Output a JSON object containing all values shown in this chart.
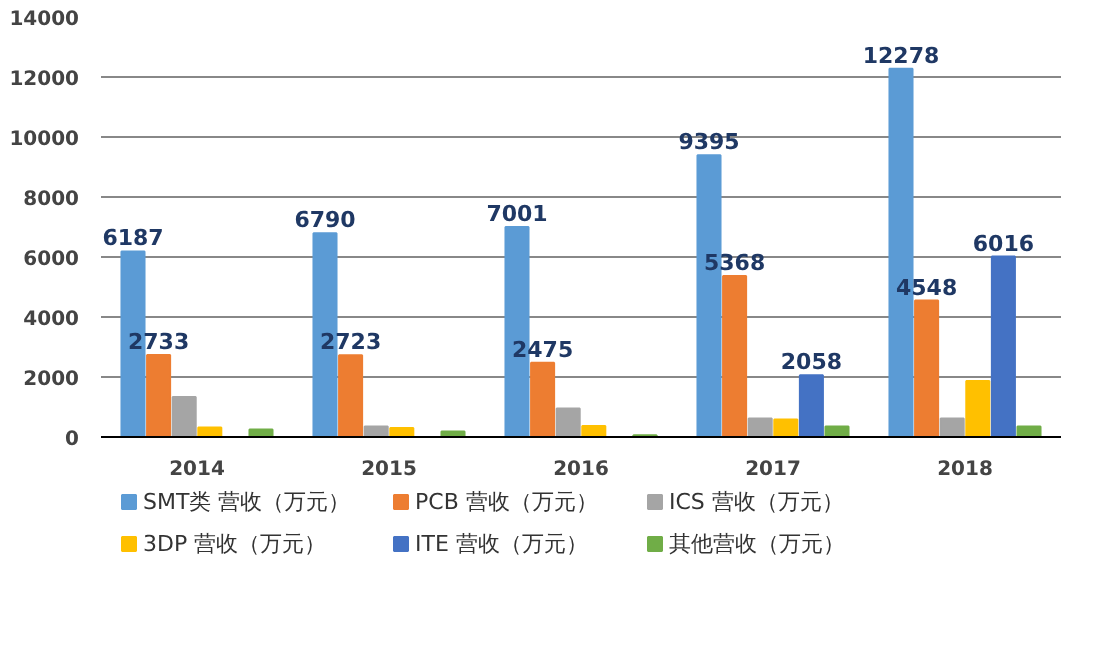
{
  "chart_data": {
    "type": "bar",
    "categories": [
      "2014",
      "2015",
      "2016",
      "2017",
      "2018"
    ],
    "series": [
      {
        "name": "SMT类 营收（万元）",
        "color": "#5b9bd5",
        "values": [
          6187,
          6790,
          7001,
          9395,
          12278
        ],
        "value_labels": [
          "6187",
          "6790",
          "7001",
          "9395",
          "12278"
        ]
      },
      {
        "name": "PCB 营收（万元）",
        "color": "#ed7d31",
        "values": [
          2733,
          2723,
          2475,
          5368,
          4548
        ],
        "value_labels": [
          "2733",
          "2723",
          "2475",
          "5368",
          "4548"
        ]
      },
      {
        "name": "ICS 营收（万元）",
        "color": "#a5a5a5",
        "values": [
          1330,
          350,
          950,
          620,
          620
        ]
      },
      {
        "name": "3DP 营收（万元）",
        "color": "#ffc000",
        "values": [
          320,
          300,
          370,
          580,
          1870
        ]
      },
      {
        "name": "ITE 营收（万元）",
        "color": "#4472c4",
        "values": [
          null,
          null,
          null,
          2058,
          6016
        ],
        "value_labels": [
          null,
          null,
          null,
          "2058",
          "6016"
        ]
      },
      {
        "name": "其他营收（万元）",
        "color": "#70ad47",
        "values": [
          250,
          180,
          60,
          350,
          350
        ]
      }
    ],
    "ylim": [
      0,
      14000
    ],
    "yticks": [
      0,
      2000,
      4000,
      6000,
      8000,
      10000,
      12000,
      14000
    ],
    "grid": "y",
    "legend": "bottom"
  }
}
